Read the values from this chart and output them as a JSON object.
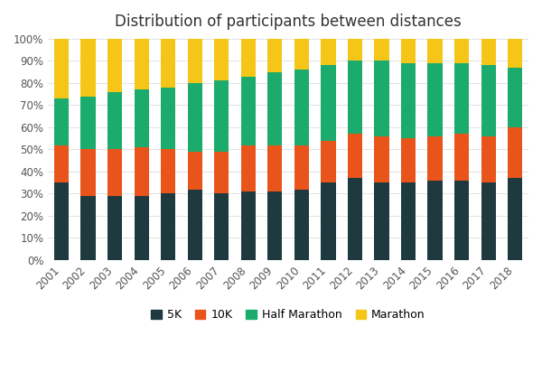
{
  "years": [
    "2001",
    "2002",
    "2003",
    "2004",
    "2005",
    "2006",
    "2007",
    "2008",
    "2009",
    "2010",
    "2011",
    "2012",
    "2013",
    "2014",
    "2015",
    "2016",
    "2017",
    "2018"
  ],
  "5K": [
    35,
    29,
    29,
    29,
    30,
    32,
    30,
    31,
    31,
    32,
    35,
    37,
    35,
    35,
    36,
    36,
    35,
    37
  ],
  "10K": [
    17,
    21,
    21,
    22,
    20,
    17,
    19,
    21,
    21,
    20,
    19,
    20,
    21,
    20,
    20,
    21,
    21,
    23
  ],
  "Half Marathon": [
    21,
    24,
    26,
    26,
    28,
    31,
    32,
    31,
    33,
    34,
    34,
    33,
    34,
    34,
    33,
    32,
    32,
    27
  ],
  "Marathon": [
    27,
    26,
    24,
    23,
    22,
    20,
    19,
    17,
    15,
    14,
    12,
    10,
    10,
    11,
    11,
    11,
    12,
    13
  ],
  "colors": [
    "#1e3a3f",
    "#e8541a",
    "#1aab6d",
    "#f5c518"
  ],
  "title": "Distribution of participants between distances",
  "legend_labels": [
    "5K",
    "10K",
    "Half Marathon",
    "Marathon"
  ],
  "bg_color": "#ffffff",
  "bar_width": 0.55,
  "ylim": [
    0,
    100
  ]
}
